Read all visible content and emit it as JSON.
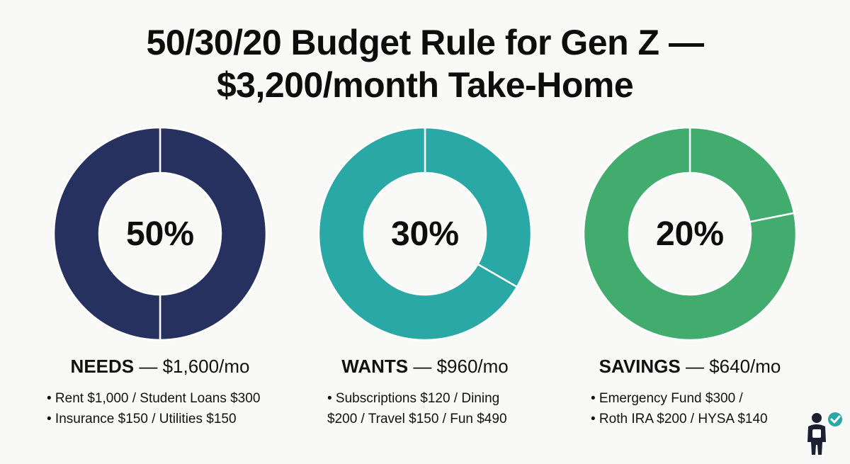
{
  "title": {
    "line1": "50/30/20 Budget Rule for Gen Z —",
    "line2": "$3,200/month Take-Home"
  },
  "colors": {
    "needs": "#27315f",
    "wants": "#2aa8a6",
    "savings": "#41ac6e",
    "background": "#f9f9f8"
  },
  "chart_data": [
    {
      "type": "pie",
      "center_label": "50%",
      "slices": [
        {
          "value": 800
        },
        {
          "value": 800
        }
      ],
      "category": "NEEDS",
      "amount": "— $1,600/mo",
      "lines": [
        "• Rent $1,000 / Student Loans $300",
        "•  Insurance $150 / Utilities $150"
      ]
    },
    {
      "type": "pie",
      "center_label": "30%",
      "slices": [
        {
          "value": 320
        },
        {
          "value": 640
        }
      ],
      "category": "WANTS",
      "amount": "— $960/mo",
      "lines": [
        "• Subscriptions $120 / Dining",
        "$200 / Travel $150 / Fun $490"
      ]
    },
    {
      "type": "pie",
      "center_label": "20%",
      "slices": [
        {
          "value": 140
        },
        {
          "value": 500
        }
      ],
      "category": "SAVINGS",
      "amount": "— $640/mo",
      "lines": [
        "• Emergency Fund $300 /",
        "• Roth IRA $200 / HYSA $140"
      ]
    }
  ],
  "mascot": {
    "icon": "person-check-icon"
  }
}
